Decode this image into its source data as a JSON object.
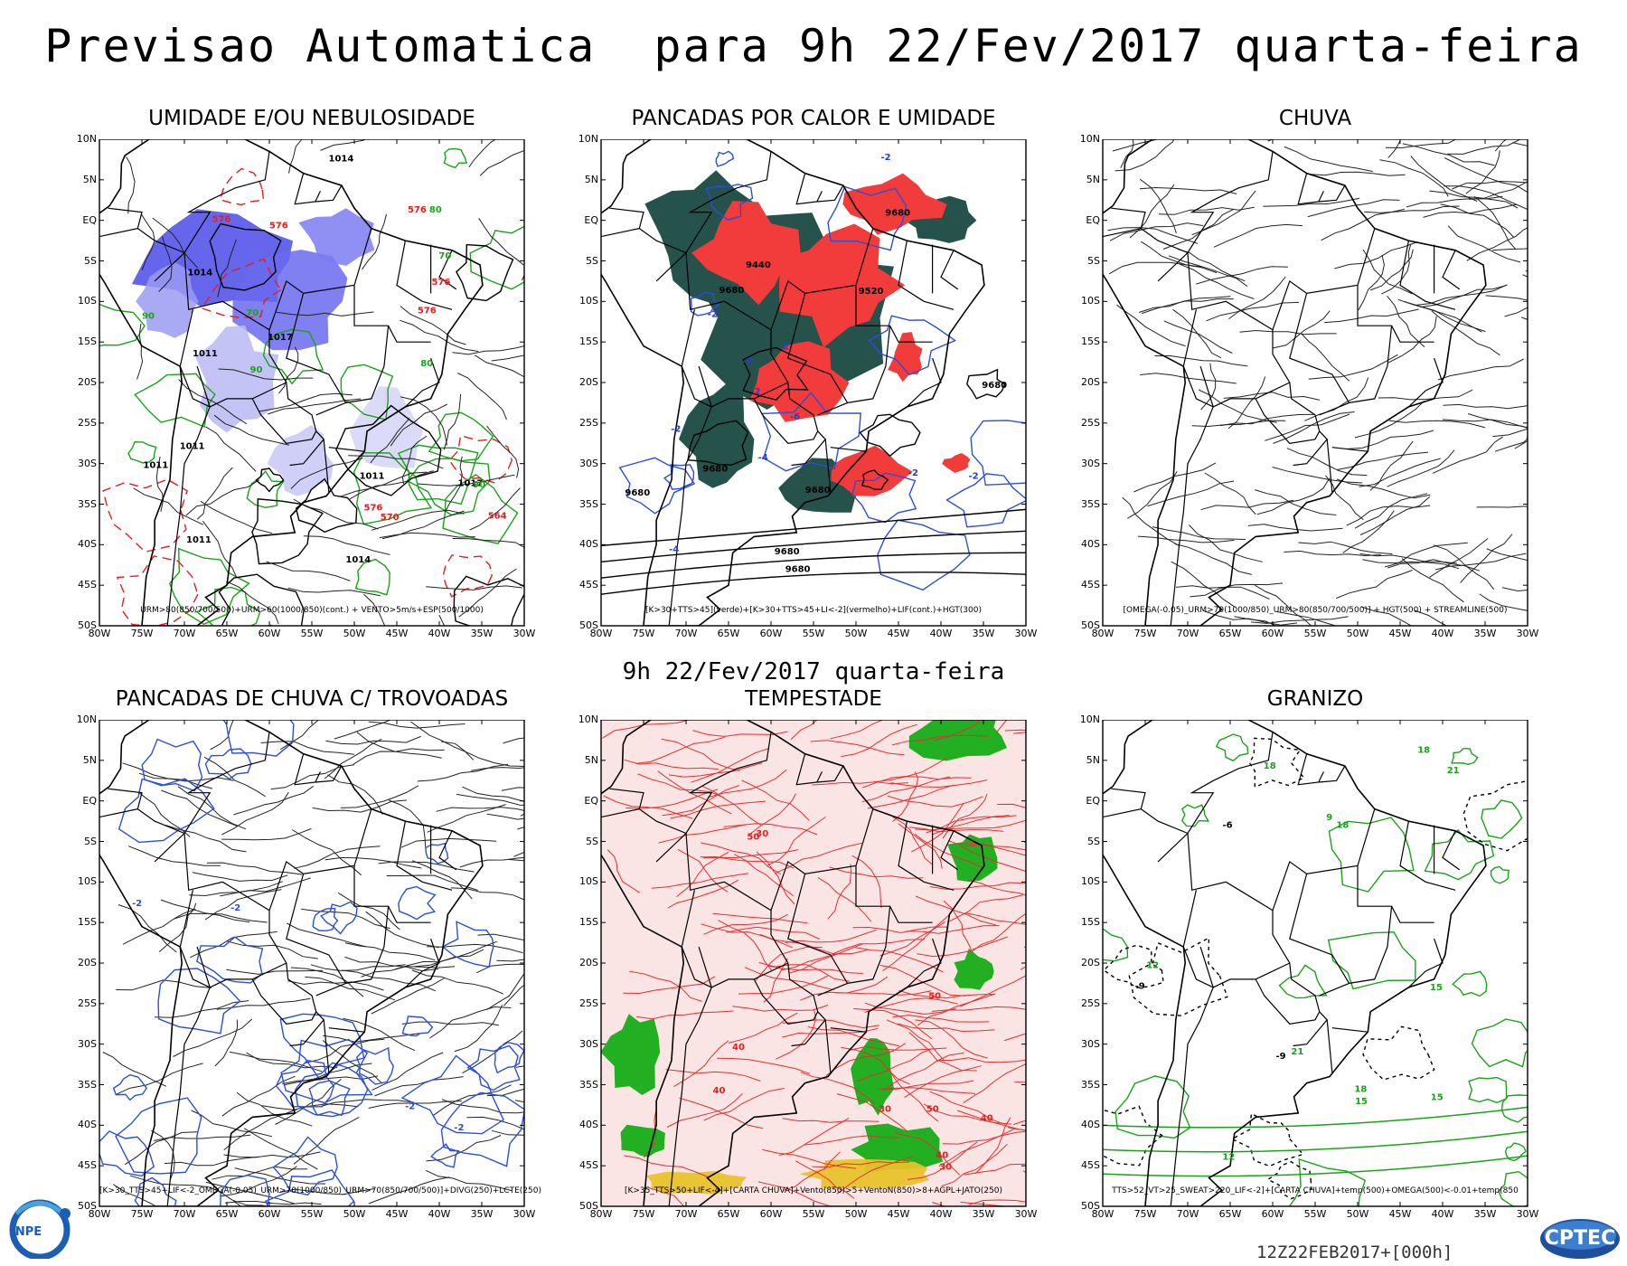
{
  "header": {
    "title": "Previsao Automatica  para 9h 22/Fev/2017 quarta-feira",
    "mid_caption": "9h 22/Fev/2017 quarta-feira"
  },
  "axes": {
    "y_labels": [
      "10N",
      "5N",
      "EQ",
      "5S",
      "10S",
      "15S",
      "20S",
      "25S",
      "30S",
      "35S",
      "40S",
      "45S",
      "50S"
    ],
    "x_labels": [
      "80W",
      "75W",
      "70W",
      "65W",
      "60W",
      "55W",
      "50W",
      "45W",
      "40W",
      "35W",
      "30W"
    ]
  },
  "panels": [
    {
      "title": "UMIDADE E/OU NEBULOSIDADE",
      "legend": "URM>80(850/700/500)+URM>60(1000/850)(cont.) + VENTO>5m/s+ESP(500/1000)",
      "labels": [
        "1011",
        "1011",
        "1011",
        "1014",
        "1014",
        "1017",
        "1017",
        "1014",
        "1011",
        "1011",
        "576",
        "576",
        "576",
        "576",
        "576",
        "576",
        "570",
        "564",
        "90",
        "90",
        "90",
        "70",
        "70",
        "80",
        "80"
      ]
    },
    {
      "title": "PANCADAS POR CALOR E UMIDADE",
      "legend": "[K>30+TTS>45](verde)+[K>30+TTS>45+LI<-2](vermelho)+LIF(cont.)+HGT(300)",
      "labels": [
        "9680",
        "9680",
        "9680",
        "9680",
        "9680",
        "9680",
        "9680",
        "9680",
        "9520",
        "9440",
        "-2",
        "-2",
        "-2",
        "-2",
        "-2",
        "-2",
        "-2",
        "-2",
        "-4",
        "-4",
        "-6"
      ]
    },
    {
      "title": "CHUVA",
      "legend": "[OMEGA(-0.05)_URM>70(1000/850)_URM>80(850/700/500)] + HGT(500) + STREAMLINE(500)",
      "labels": []
    },
    {
      "title": "PANCADAS DE CHUVA C/ TROVOADAS",
      "legend": "[K>30_TTS>45+LIF<-2_OMEGA(-0.05)_URM>70(1000/850)_URM>70(850/700/500)]+DIVG(250)+LCTE(250)",
      "labels": [
        "-2",
        "-2",
        "-2",
        "-2"
      ]
    },
    {
      "title": "TEMPESTADE",
      "legend": "[K>35_TTS>50+LIF<-4]+[CARTA CHUVA]+Vento(850)>5+VentoN(850)>8+AGPL+JATO(250)",
      "labels": [
        "50",
        "50",
        "40",
        "40",
        "50",
        "40",
        "30",
        "30",
        "40",
        "30"
      ]
    },
    {
      "title": "GRANIZO",
      "legend": "TTS>52_VT>25_SWEAT>220_LIF<-2]+[CARTA CHUVA]+temp(500)+OMEGA(500)<-0.01+temp(850",
      "labels": [
        "18",
        "18",
        "18",
        "15",
        "15",
        "15",
        "12",
        "12",
        "-9",
        "-9",
        "-6",
        "21",
        "21",
        "18",
        "9"
      ]
    }
  ],
  "footer": {
    "run_code": "12Z22FEB2017+[000h]",
    "logo_left": "INPE",
    "logo_right": "CPTEC"
  }
}
